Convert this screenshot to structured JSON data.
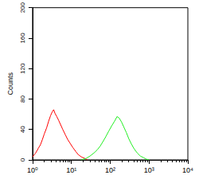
{
  "chart_data": {
    "type": "line",
    "y_label": "Counts",
    "log": "x",
    "grid": false,
    "xlim": [
      1,
      10000
    ],
    "xticks": [
      {
        "value": 1,
        "label": "10⁰"
      },
      {
        "value": 10,
        "label": "10¹"
      },
      {
        "value": 100,
        "label": "10²"
      },
      {
        "value": 1000,
        "label": "10³"
      },
      {
        "value": 10000,
        "label": "10⁴"
      }
    ],
    "ylim": [
      0,
      200
    ],
    "yticks": [
      0,
      40,
      80,
      120,
      160,
      200
    ],
    "series": [
      {
        "color": "#ff0000",
        "x": [
          1,
          1.2,
          1.4,
          1.6,
          1.8,
          2,
          2.3,
          2.6,
          2.9,
          3.2,
          3.5,
          3.8,
          4.2,
          4.7,
          5.2,
          6,
          7,
          8,
          9.5,
          11,
          13,
          15,
          18,
          22,
          26
        ],
        "values": [
          4,
          9,
          15,
          20,
          27,
          34,
          42,
          51,
          58,
          63,
          66,
          61,
          57,
          52,
          47,
          40,
          33,
          27,
          21,
          16,
          11,
          7,
          4,
          2,
          0
        ]
      },
      {
        "color": "#22ee22",
        "x": [
          18,
          24,
          30,
          38,
          46,
          55,
          65,
          78,
          92,
          110,
          130,
          150,
          170,
          195,
          225,
          260,
          300,
          350,
          420,
          500,
          600,
          720,
          850,
          1000
        ],
        "values": [
          0,
          2,
          5,
          9,
          13,
          18,
          24,
          31,
          38,
          45,
          51,
          57,
          55,
          50,
          43,
          36,
          28,
          21,
          14,
          9,
          5,
          3,
          1,
          0
        ]
      }
    ]
  }
}
